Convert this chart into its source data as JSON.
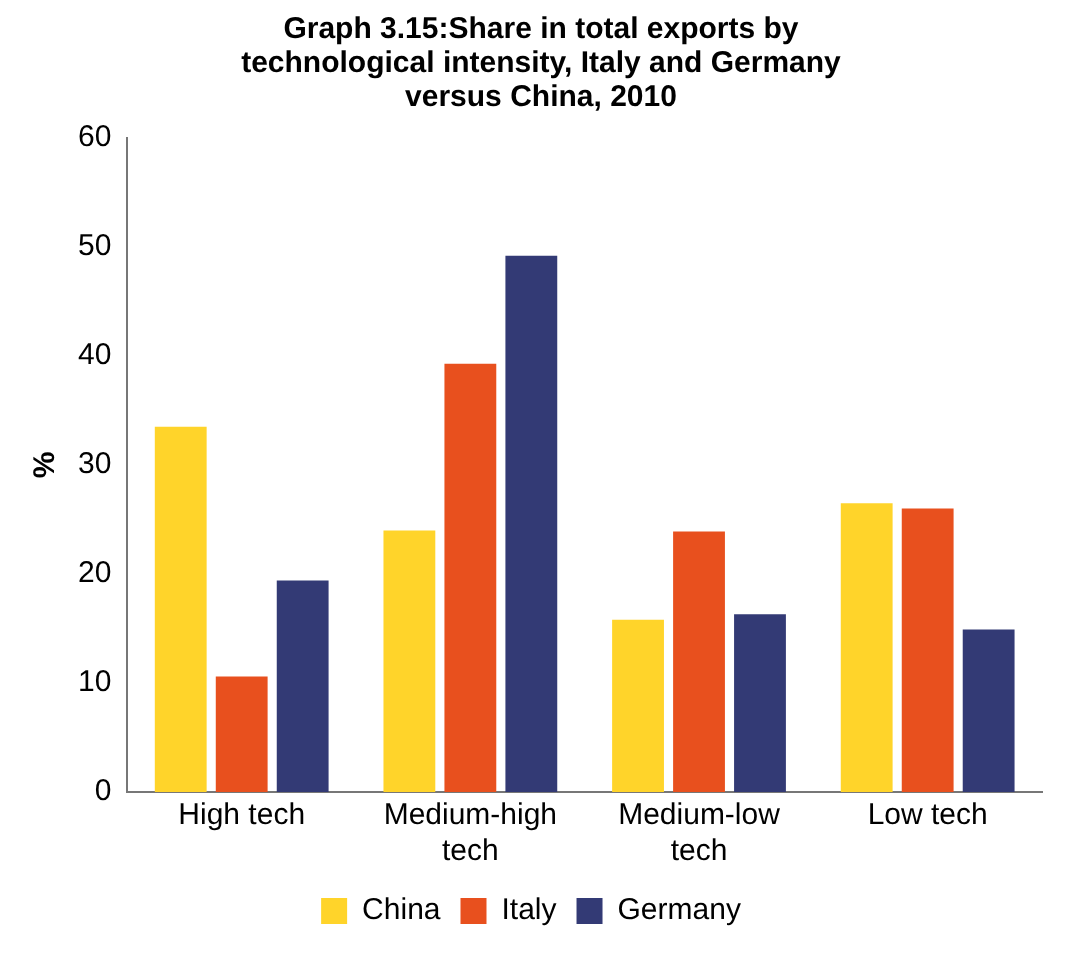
{
  "chart_data": {
    "type": "bar",
    "title": "Graph 3.15:Share in total exports by technological intensity, Italy and Germany versus China, 2010",
    "ylabel": "%",
    "categories": [
      "High tech",
      "Medium-high tech",
      "Medium-low tech",
      "Low tech"
    ],
    "series": [
      {
        "name": "China",
        "color": "#ffd42a",
        "values": [
          33.5,
          24,
          15.8,
          26.5
        ]
      },
      {
        "name": "Italy",
        "color": "#e8501e",
        "values": [
          10.6,
          39.3,
          23.9,
          26
        ]
      },
      {
        "name": "Germany",
        "color": "#333a75",
        "values": [
          19.4,
          49.2,
          16.3,
          14.9
        ]
      }
    ],
    "ylim": [
      0,
      60
    ],
    "yticks": [
      0,
      10,
      20,
      30,
      40,
      50,
      60
    ],
    "grid": false,
    "legend": "bottom"
  }
}
